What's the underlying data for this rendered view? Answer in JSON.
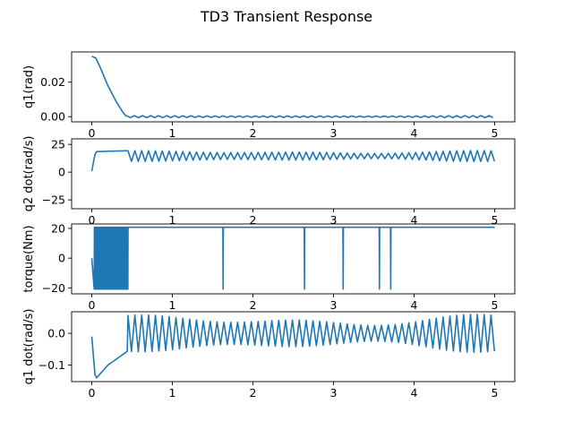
{
  "figure": {
    "title": "TD3 Transient Response",
    "line_color": "#1f77b4"
  },
  "chart_data": [
    {
      "type": "line",
      "ylabel": "q1(rad)",
      "xlim": [
        -0.25,
        5.25
      ],
      "ylim": [
        -0.003,
        0.0375
      ],
      "xticks": [
        0,
        1,
        2,
        3,
        4,
        5
      ],
      "yticks": [
        0.0,
        0.02
      ],
      "ytick_labels": [
        "0.00",
        "0.02"
      ],
      "keypoints": [
        [
          0,
          0.035
        ],
        [
          0.05,
          0.034
        ],
        [
          0.1,
          0.029
        ],
        [
          0.2,
          0.018
        ],
        [
          0.3,
          0.009
        ],
        [
          0.38,
          0.003
        ],
        [
          0.43,
          0.0
        ],
        [
          5.0,
          0.0
        ]
      ],
      "oscillation": {
        "start": 0.43,
        "end": 5.0,
        "period": 0.1,
        "amplitude_min": 0.0003,
        "amplitude_max": 0.0006
      }
    },
    {
      "type": "line",
      "ylabel": "q2 dot(rad/s)",
      "xlim": [
        -0.25,
        5.25
      ],
      "ylim": [
        -33,
        30
      ],
      "xticks": [
        0,
        1,
        2,
        3,
        4,
        5
      ],
      "yticks": [
        -25,
        0,
        25
      ],
      "ytick_labels": [
        "−25",
        "0",
        "25"
      ],
      "keypoints": [
        [
          0,
          1
        ],
        [
          0.04,
          16
        ],
        [
          0.06,
          18.5
        ],
        [
          0.45,
          19.3
        ]
      ],
      "oscillation": {
        "start": 0.45,
        "end": 5.0,
        "period": 0.085,
        "center": 14.5,
        "amplitude_min": 2,
        "amplitude_max": 5
      }
    },
    {
      "type": "line",
      "ylabel": "torque(Nm)",
      "xlim": [
        -0.25,
        5.25
      ],
      "ylim": [
        -24,
        23
      ],
      "xticks": [
        0,
        1,
        2,
        3,
        4,
        5
      ],
      "yticks": [
        -20,
        0,
        20
      ],
      "ytick_labels": [
        "−20",
        "0",
        "20"
      ],
      "saturation": 20.8,
      "bang_bang": {
        "start": 0.03,
        "end": 0.45,
        "low": -20.8,
        "high": 20.8
      },
      "spikes_down_at": [
        1.63,
        2.64,
        3.12,
        3.57,
        3.71
      ]
    },
    {
      "type": "line",
      "ylabel": "q1 dot(rad/s)",
      "xlim": [
        -0.25,
        5.25
      ],
      "ylim": [
        -0.152,
        0.068
      ],
      "xticks": [
        0,
        1,
        2,
        3,
        4,
        5
      ],
      "yticks": [
        -0.1,
        0.0
      ],
      "ytick_labels": [
        "−0.1",
        "0.0"
      ],
      "keypoints": [
        [
          0,
          -0.01
        ],
        [
          0.04,
          -0.13
        ],
        [
          0.06,
          -0.14
        ],
        [
          0.2,
          -0.1
        ],
        [
          0.45,
          -0.055
        ]
      ],
      "oscillation": {
        "start": 0.45,
        "end": 5.0,
        "period": 0.085,
        "center": 0.0,
        "amplitude_min": 0.02,
        "amplitude_max": 0.06
      }
    }
  ]
}
